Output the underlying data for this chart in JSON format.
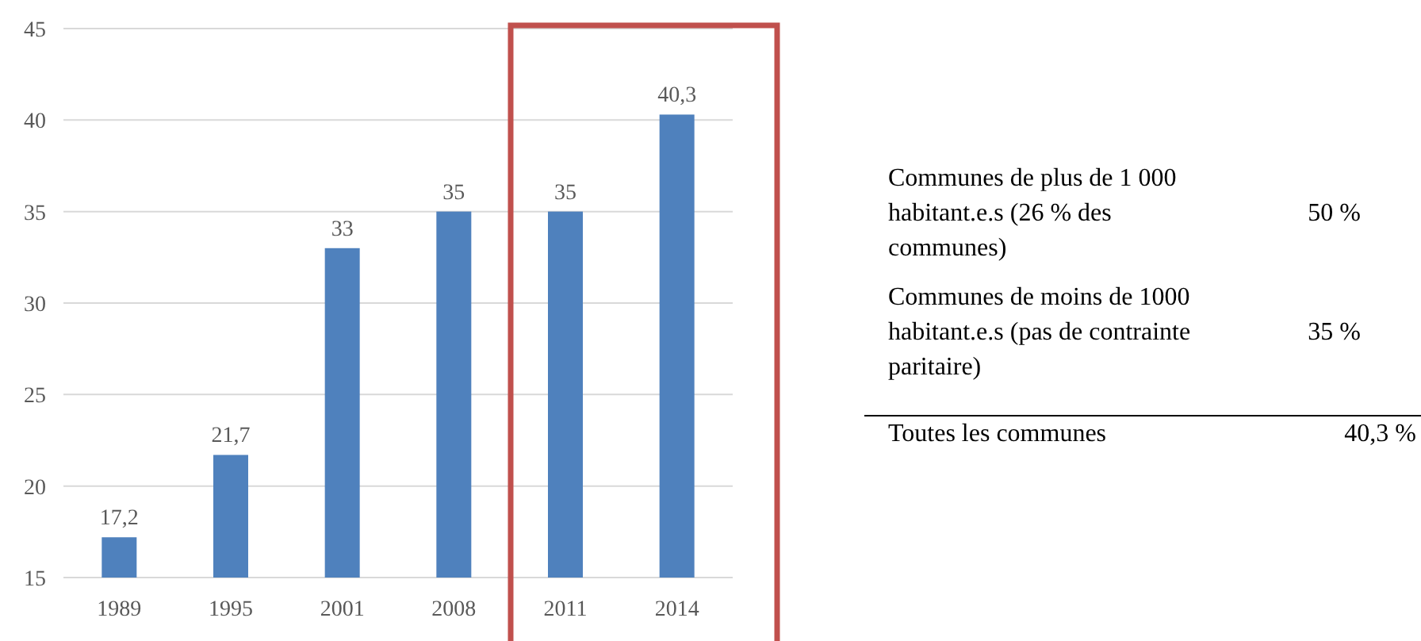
{
  "chart_data": {
    "type": "bar",
    "categories": [
      "1989",
      "1995",
      "2001",
      "2008",
      "2011",
      "2014"
    ],
    "values": [
      17.2,
      21.7,
      33,
      35,
      35,
      40.3
    ],
    "value_labels": [
      "17,2",
      "21,7",
      "33",
      "35",
      "35",
      "40,3"
    ],
    "color": "#4f81bd",
    "ylim": [
      15,
      45
    ],
    "yticks": [
      15,
      20,
      25,
      30,
      35,
      40,
      45
    ],
    "grid": "y",
    "annotations": [
      "Communes de plus de 1 000\nhabitant.e.s (26 % des\ncommunes)",
      "50 %",
      "Communes de moins de 1000\nhabitant.e.s (pas de contrainte\nparitaire)",
      "35 %",
      "Toutes les communes",
      "40,3 %"
    ]
  }
}
